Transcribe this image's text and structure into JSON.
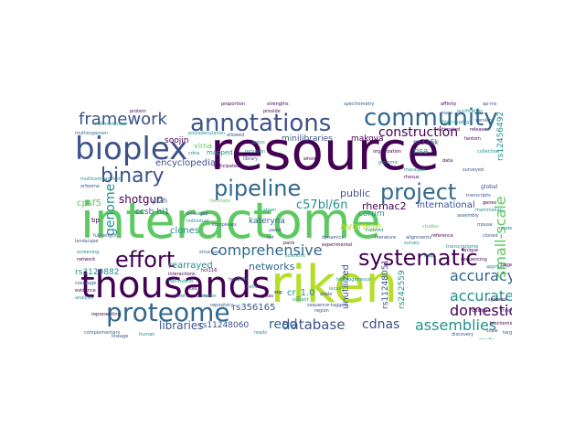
{
  "palette": {
    "dark_purple": "#440154",
    "indigo": "#3b528b",
    "blue": "#31688e",
    "teal": "#21918c",
    "green": "#5ec962",
    "lime": "#b5de2b",
    "yellow": "#fde725",
    "navy": "#2c3e7a"
  },
  "words": {
    "interactome": "interactome",
    "resource": "resource",
    "riken": "riken",
    "thousands": "thousands",
    "bioplex": "bioplex",
    "annotations": "annotations",
    "community": "community",
    "pipeline": "pipeline",
    "project": "project",
    "proteome": "proteome",
    "systematic": "systematic",
    "effort": "effort",
    "binary": "binary",
    "framework": "framework",
    "comprehensive": "comprehensive",
    "accurate": "accurate",
    "construction": "construction",
    "domestic": "domestic",
    "accuracy": "accuracy",
    "small_scale": "small-scale",
    "assemblies": "assemblies",
    "database": "database",
    "cdnas": "cdnas",
    "read": "read",
    "libraries": "libraries",
    "c57bl6n": "c57bl/6n",
    "shotgun": "shotgun",
    "genome": "genome",
    "encyclopedia": "encyclopedia",
    "networks": "networks",
    "public": "public",
    "rhemac2": "rhemac2",
    "international": "international",
    "average": "average",
    "clones": "clones",
    "rearrayed": "rearrayed",
    "unutilized": "unutilized",
    "cr_1_0": "cr_1.0",
    "rs356165": "rs356165",
    "rs11248060": "rs11248060",
    "rs11248051": "rs11248051",
    "rs242559": "rs242559",
    "rs3129882": "rs3129882",
    "rs12456492": "rs12456492",
    "minilibraries": "minilibraries",
    "makova": "makova",
    "soojin": "soojin",
    "cpsf5": "cpsf5",
    "ccsb_hi1": "ccsb-hi1",
    "hi_ii_14": "hi-ii-14",
    "kateryna": "kateryna",
    "corum": "corum",
    "risa": "risa",
    "m326k": "m326k",
    "virna": "virna",
    "yi2h": "yi2h",
    "mapped": "mapped",
    "bp": "bp",
    "complementary": "complementary",
    "alignments": "alignments",
    "survey": "survey",
    "coverage": "coverage",
    "spectrometry": "spectrometry",
    "proportion": "proportion",
    "strengths": "strengths",
    "multiorganism": "multiorganism",
    "polyadenylation": "polyadenylation",
    "dynamics": "dynamics",
    "discovery": "discovery",
    "reference": "reference",
    "global": "global",
    "pairs": "pairs",
    "anticipated": "anticipated",
    "biochemical": "biochemical",
    "scientific": "scientific",
    "repository": "repository",
    "inclusion": "inclusion",
    "facilitate": "facilitate",
    "unrivaled": "unrivaled",
    "transcriptome": "transcriptome",
    "multimolecular": "multimolecular",
    "organization": "organization",
    "individual": "individual",
    "full_length": "full-length",
    "heterogeneous": "heterogeneous",
    "representing": "representing",
    "sequence_tagged": "sequence-tagged",
    "multicompartment": "multicompartment",
    "complexes": "complexes",
    "estimated": "estimated",
    "provide": "provide",
    "allowed": "allowed",
    "genomic": "genomic",
    "surveyed": "surveyed",
    "whole": "whole",
    "studies": "studies",
    "cells": "cells",
    "hek293t": "hek293t",
    "hct116": "hct116",
    "human": "human",
    "mouse": "mouse",
    "protein": "protein",
    "cdna": "cdna",
    "orfeome": "orfeome",
    "library": "library",
    "data": "data",
    "high_quality": "high-quality",
    "landscape": "landscape",
    "interactions": "interactions",
    "map": "map",
    "yeast": "yeast",
    "two_hybrid": "two-hybrid",
    "version": "version",
    "release": "release",
    "collection": "collection",
    "fantom": "fantom",
    "cloned": "cloned",
    "unique": "unique",
    "curated": "curated",
    "literature": "literature",
    "experimental": "experimental",
    "screening": "screening",
    "set": "set",
    "network": "network",
    "macaque": "macaque",
    "rhesus": "rhesus",
    "assembly": "assembly",
    "strain": "strain",
    "snp": "snp",
    "allele": "allele",
    "locus": "locus",
    "gwas": "gwas",
    "variant": "variant",
    "region": "region",
    "sites": "sites",
    "reads": "reads",
    "mass": "mass",
    "affinity": "affinity",
    "purification": "purification",
    "ap_ms": "ap-ms",
    "baits": "baits",
    "preys": "preys",
    "structure": "structure",
    "evidence": "evidence",
    "analysis": "analysis",
    "lineage": "lineage",
    "functional": "functional",
    "cluster": "cluster",
    "gene": "gene",
    "genes": "genes",
    "mammalian": "mammalian",
    "transcripts": "transcripts",
    "sequencing": "sequencing",
    "approach": "approach",
    "scale": "scale",
    "quality": "quality",
    "results": "results",
    "target": "target",
    "targets": "targets",
    "model": "model",
    "models": "models",
    "systems": "systems"
  }
}
